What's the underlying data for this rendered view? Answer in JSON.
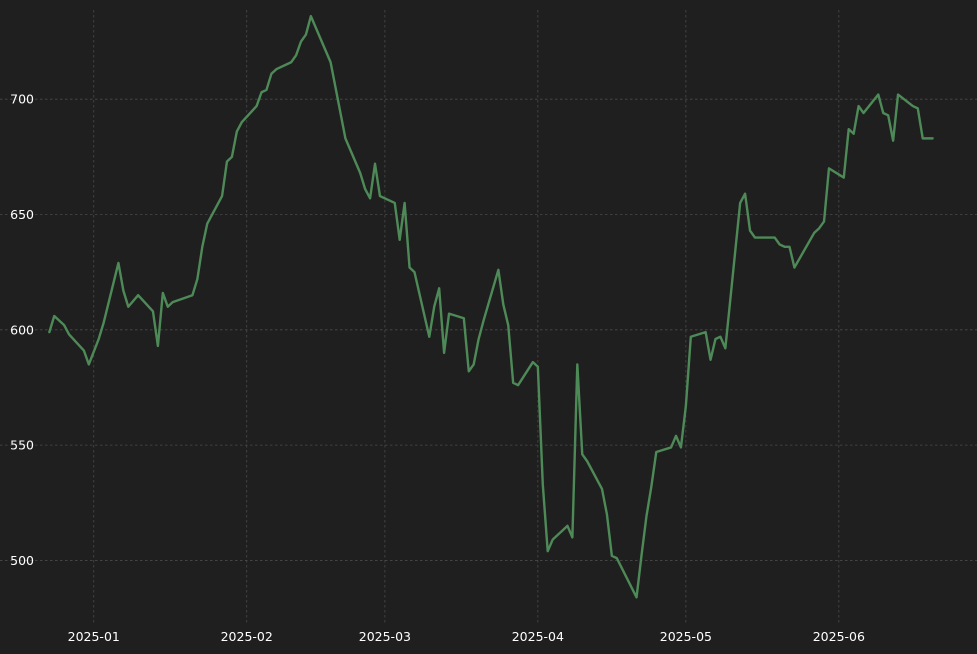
{
  "colors": {
    "background": "#1f1f1f",
    "line": "#4e8a57",
    "grid": "#4a4a4a",
    "text": "#ffffff"
  },
  "chart_data": {
    "type": "line",
    "title": "",
    "xlabel": "",
    "ylabel": "",
    "grid": true,
    "ylim": [
      472,
      743
    ],
    "xlim": [
      "2024-12-13",
      "2025-06-29"
    ],
    "x_ticks": [
      "2025-01",
      "2025-02",
      "2025-03",
      "2025-04",
      "2025-05",
      "2025-06"
    ],
    "y_ticks": [
      500,
      550,
      600,
      650,
      700
    ],
    "series": [
      {
        "x": [
          "2024-12-23",
          "2024-12-24",
          "2024-12-26",
          "2024-12-27",
          "2024-12-30",
          "2024-12-31",
          "2025-01-02",
          "2025-01-03",
          "2025-01-06",
          "2025-01-07",
          "2025-01-08",
          "2025-01-10",
          "2025-01-13",
          "2025-01-14",
          "2025-01-15",
          "2025-01-16",
          "2025-01-17",
          "2025-01-21",
          "2025-01-22",
          "2025-01-23",
          "2025-01-24",
          "2025-01-27",
          "2025-01-28",
          "2025-01-29",
          "2025-01-30",
          "2025-01-31",
          "2025-02-03",
          "2025-02-04",
          "2025-02-05",
          "2025-02-06",
          "2025-02-07",
          "2025-02-10",
          "2025-02-11",
          "2025-02-12",
          "2025-02-13",
          "2025-02-14",
          "2025-02-18",
          "2025-02-19",
          "2025-02-20",
          "2025-02-21",
          "2025-02-24",
          "2025-02-25",
          "2025-02-26",
          "2025-02-27",
          "2025-02-28",
          "2025-03-03",
          "2025-03-04",
          "2025-03-05",
          "2025-03-06",
          "2025-03-07",
          "2025-03-10",
          "2025-03-11",
          "2025-03-12",
          "2025-03-13",
          "2025-03-14",
          "2025-03-17",
          "2025-03-18",
          "2025-03-19",
          "2025-03-20",
          "2025-03-21",
          "2025-03-24",
          "2025-03-25",
          "2025-03-26",
          "2025-03-27",
          "2025-03-28",
          "2025-03-31",
          "2025-04-01",
          "2025-04-02",
          "2025-04-03",
          "2025-04-04",
          "2025-04-07",
          "2025-04-08",
          "2025-04-09",
          "2025-04-10",
          "2025-04-11",
          "2025-04-14",
          "2025-04-15",
          "2025-04-16",
          "2025-04-17",
          "2025-04-21",
          "2025-04-22",
          "2025-04-23",
          "2025-04-24",
          "2025-04-25",
          "2025-04-28",
          "2025-04-29",
          "2025-04-30",
          "2025-05-01",
          "2025-05-02",
          "2025-05-05",
          "2025-05-06",
          "2025-05-07",
          "2025-05-08",
          "2025-05-09",
          "2025-05-12",
          "2025-05-13",
          "2025-05-14",
          "2025-05-15",
          "2025-05-16",
          "2025-05-19",
          "2025-05-20",
          "2025-05-21",
          "2025-05-22",
          "2025-05-23",
          "2025-05-27",
          "2025-05-28",
          "2025-05-29",
          "2025-05-30",
          "2025-06-02",
          "2025-06-03",
          "2025-06-04",
          "2025-06-05",
          "2025-06-06",
          "2025-06-09",
          "2025-06-10",
          "2025-06-11",
          "2025-06-12",
          "2025-06-13",
          "2025-06-16",
          "2025-06-17",
          "2025-06-18",
          "2025-06-20"
        ],
        "values": [
          599,
          606,
          602,
          598,
          591,
          585,
          596,
          603,
          629,
          617,
          610,
          615,
          608,
          593,
          616,
          610,
          612,
          615,
          622,
          636,
          646,
          658,
          673,
          675,
          686,
          690,
          697,
          703,
          704,
          711,
          713,
          716,
          719,
          725,
          728,
          736,
          716,
          705,
          694,
          683,
          668,
          661,
          657,
          672,
          658,
          655,
          639,
          655,
          627,
          625,
          597,
          610,
          618,
          590,
          607,
          605,
          582,
          585,
          596,
          604,
          626,
          611,
          602,
          577,
          576,
          586,
          584,
          533,
          504,
          509,
          515,
          510,
          585,
          546,
          543,
          531,
          520,
          502,
          501,
          484,
          502,
          519,
          532,
          547,
          549,
          554,
          549,
          567,
          597,
          599,
          587,
          596,
          597,
          592,
          655,
          659,
          643,
          640,
          640,
          640,
          637,
          636,
          636,
          627,
          642,
          644,
          647,
          670,
          666,
          687,
          685,
          697,
          694,
          702,
          694,
          693,
          682,
          702,
          697,
          696,
          683,
          683
        ],
        "color": "#4e8a57"
      }
    ]
  }
}
